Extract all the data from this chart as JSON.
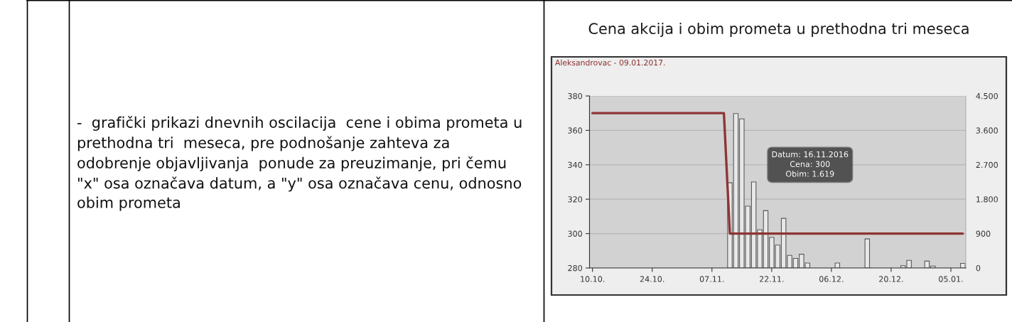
{
  "chart_data": {
    "type": "bar",
    "title": "Cena akcija i obim prometa u prethodna tri meseca",
    "subtitle": "Aleksandrovac - 09.01.2017.",
    "categories": [
      "10.10.",
      null,
      null,
      null,
      null,
      null,
      null,
      null,
      null,
      null,
      "24.10.",
      null,
      null,
      null,
      null,
      null,
      null,
      null,
      null,
      null,
      "07.11.",
      null,
      null,
      null,
      null,
      null,
      null,
      null,
      null,
      null,
      "22.11.",
      null,
      null,
      null,
      null,
      null,
      null,
      null,
      null,
      null,
      "06.12.",
      null,
      null,
      null,
      null,
      null,
      null,
      null,
      null,
      null,
      "20.12.",
      null,
      null,
      null,
      null,
      null,
      null,
      null,
      null,
      null,
      "05.01.",
      null,
      null
    ],
    "series": [
      {
        "axis": "y2",
        "color": "#e8e8e8",
        "values": [
          null,
          null,
          null,
          null,
          null,
          null,
          null,
          null,
          null,
          null,
          null,
          null,
          null,
          null,
          null,
          null,
          null,
          null,
          null,
          null,
          null,
          null,
          null,
          2230,
          4040,
          3900,
          1619,
          2250,
          1000,
          1500,
          800,
          600,
          1300,
          330,
          250,
          360,
          130,
          null,
          null,
          null,
          null,
          130,
          null,
          null,
          null,
          null,
          760,
          null,
          null,
          null,
          null,
          null,
          60,
          200,
          null,
          null,
          180,
          50,
          null,
          null,
          null,
          null,
          120
        ]
      },
      {
        "type": "line",
        "color": "#8e3434",
        "values": [
          370,
          370,
          370,
          370,
          370,
          370,
          370,
          370,
          370,
          370,
          370,
          370,
          370,
          370,
          370,
          370,
          370,
          370,
          370,
          370,
          370,
          370,
          370,
          300,
          300,
          300,
          300,
          300,
          300,
          300,
          300,
          300,
          300,
          300,
          300,
          300,
          300,
          300,
          300,
          300,
          300,
          300,
          300,
          300,
          300,
          300,
          300,
          300,
          300,
          300,
          300,
          300,
          300,
          300,
          300,
          300,
          300,
          300,
          300,
          300,
          300,
          300,
          300
        ]
      }
    ],
    "ylim": [
      280,
      380
    ],
    "yticks": [
      280,
      300,
      320,
      340,
      360,
      380
    ],
    "y2lim": [
      0,
      4500
    ],
    "y2ticks": [
      0,
      900,
      {
        "value": 1800,
        "label": "1.800"
      },
      {
        "value": 2700,
        "label": "2.700"
      },
      {
        "value": 3600,
        "label": "3.600"
      },
      {
        "value": 4500,
        "label": "4.500"
      }
    ],
    "grid": "y",
    "line_style": "solid",
    "annotations": [
      "-  grafički prikazi dnevnih oscilacija  cene i obima prometa u\nprethodna tri  meseca, pre podnošanje zahteva za\nodobrenje objavljivanja  ponude za preuzimanje, pri čemu\n\"x\" osa označava datum, a \"y\" osa označava cenu, odnosno\nobim prometa",
      "Datum: 16.11.2016\nCena: 300\nObim: 1.619"
    ]
  }
}
